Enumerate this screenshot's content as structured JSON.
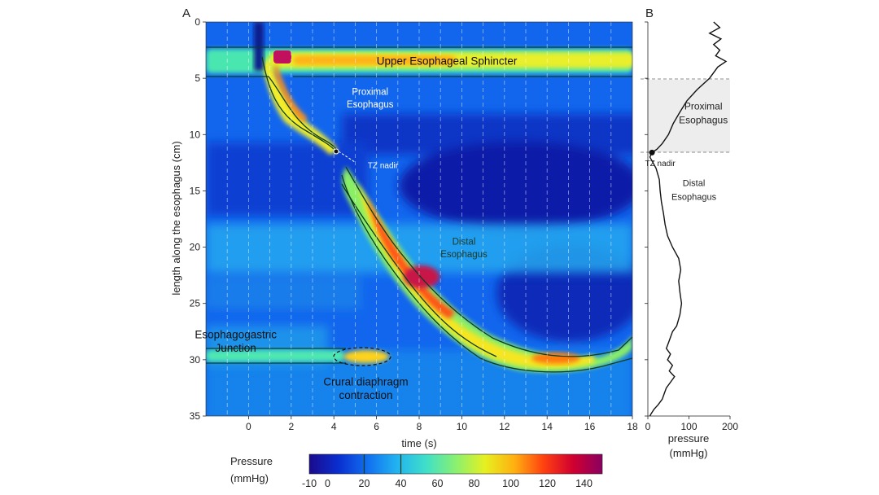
{
  "chart_data": [
    {
      "panel": "A",
      "type": "heatmap",
      "xlabel": "time (s)",
      "ylabel": "length along the esophagus (cm)",
      "xlim": [
        -2,
        18
      ],
      "ylim": [
        35,
        0
      ],
      "xticks": [
        "0",
        "2",
        "4",
        "6",
        "8",
        "10",
        "12",
        "14",
        "16",
        "18"
      ],
      "yticks": [
        "0",
        "5",
        "10",
        "15",
        "20",
        "25",
        "30",
        "35"
      ],
      "grid": "vertical dashed lines every 1 s",
      "colormap": [
        "#1a0a8c",
        "#0a2fd0",
        "#1170f0",
        "#22b4f0",
        "#40e0c8",
        "#8af070",
        "#e6f020",
        "#ffb010",
        "#ff4010",
        "#d00030",
        "#8a0060"
      ],
      "contours_mmHg": [
        20,
        40
      ],
      "annotations": [
        {
          "text": "Upper Esophageal Sphincter",
          "x": 9.3,
          "y": 3.5
        },
        {
          "text": "Proximal",
          "x": 5.7,
          "y": 6.2
        },
        {
          "text": "Esophagus",
          "x": 5.7,
          "y": 7.3
        },
        {
          "text": "TZ nadir",
          "x": 6.3,
          "y": 12.7
        },
        {
          "text": "Distal",
          "x": 10.1,
          "y": 19.5
        },
        {
          "text": "Esophagus",
          "x": 10.1,
          "y": 20.6
        },
        {
          "text": "Esophagogastric",
          "x": -0.6,
          "y": 27.8
        },
        {
          "text": "Junction",
          "x": -0.6,
          "y": 29.0
        },
        {
          "text": "Crural diaphragm",
          "x": 5.5,
          "y": 32.0
        },
        {
          "text": "contraction",
          "x": 5.5,
          "y": 33.2
        }
      ],
      "tz_nadir": {
        "time_s": 4.2,
        "length_cm": 11.6
      }
    },
    {
      "panel": "B",
      "type": "line",
      "xlabel": "pressure",
      "xunit": "(mmHg)",
      "xlim": [
        0,
        200
      ],
      "ylim": [
        35,
        0
      ],
      "xticks": [
        "0",
        "100",
        "200"
      ],
      "region_boundaries_cm": [
        5,
        11.6
      ],
      "labels": [
        {
          "text": "Proximal",
          "x": 135,
          "y": 7.5
        },
        {
          "text": "Esophagus",
          "x": 135,
          "y": 8.7
        },
        {
          "text": "TZ nadir",
          "x": 30,
          "y": 12.5
        },
        {
          "text": "Distal",
          "x": 112,
          "y": 14.3
        },
        {
          "text": "Esophagus",
          "x": 112,
          "y": 15.5
        }
      ],
      "x": [
        160,
        175,
        150,
        178,
        160,
        175,
        165,
        190,
        170,
        150,
        120,
        95,
        78,
        62,
        50,
        35,
        22,
        10,
        5,
        20,
        28,
        30,
        33,
        38,
        42,
        48,
        60,
        75,
        80,
        75,
        78,
        80,
        82,
        78,
        70,
        60,
        55,
        50,
        45,
        55,
        48,
        60,
        52,
        65,
        55,
        45,
        40,
        35,
        25,
        15,
        8,
        5
      ],
      "y": [
        0,
        0.5,
        1,
        1.5,
        2,
        2.5,
        3,
        3.5,
        4,
        5,
        6,
        7,
        8,
        9,
        10,
        10.8,
        11.3,
        11.6,
        12,
        13,
        14,
        15,
        16,
        17,
        18,
        19,
        20,
        21,
        22,
        23,
        24,
        24.5,
        25,
        26,
        27,
        27.5,
        28,
        28.5,
        29,
        29.5,
        30,
        30.5,
        31,
        31.5,
        32,
        32.5,
        33,
        33.5,
        34,
        34.4,
        34.8,
        35
      ],
      "marker": {
        "x": 10,
        "y": 11.6
      }
    }
  ],
  "colorbar": {
    "title_line1": "Pressure",
    "title_line2": "(mmHg)",
    "ticks": [
      "-10",
      "0",
      "20",
      "40",
      "60",
      "80",
      "100",
      "120",
      "140"
    ],
    "vmin": -10,
    "vmax": 150
  }
}
